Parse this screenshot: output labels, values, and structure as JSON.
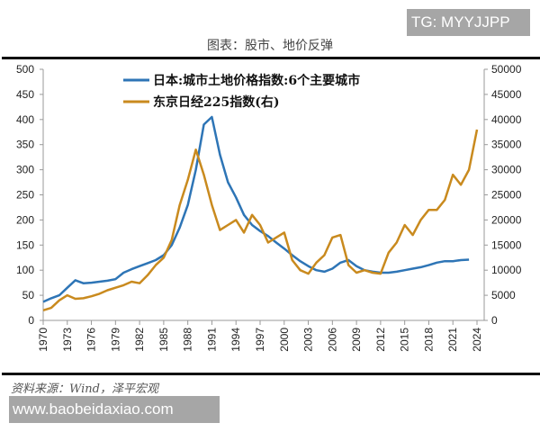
{
  "watermarks": {
    "top": "TG: MYYJJPP",
    "bottom": "www.baobeidaxiao.com"
  },
  "source": "资料来源：Wind，泽平宏观",
  "chart_data": {
    "type": "line",
    "title": "图表：股市、地价反弹",
    "x": [
      1970,
      1971,
      1972,
      1973,
      1974,
      1975,
      1976,
      1977,
      1978,
      1979,
      1980,
      1981,
      1982,
      1983,
      1984,
      1985,
      1986,
      1987,
      1988,
      1989,
      1990,
      1991,
      1992,
      1993,
      1994,
      1995,
      1996,
      1997,
      1998,
      1999,
      2000,
      2001,
      2002,
      2003,
      2004,
      2005,
      2006,
      2007,
      2008,
      2009,
      2010,
      2011,
      2012,
      2013,
      2014,
      2015,
      2016,
      2017,
      2018,
      2019,
      2020,
      2021,
      2022,
      2023,
      2024
    ],
    "xticks": [
      "1970",
      "1973",
      "1976",
      "1979",
      "1982",
      "1985",
      "1988",
      "1991",
      "1994",
      "1997",
      "2000",
      "2003",
      "2006",
      "2009",
      "2012",
      "2015",
      "2018",
      "2021",
      "2024"
    ],
    "y_left": {
      "lim": [
        0,
        500
      ],
      "ticks": [
        "0",
        "50",
        "100",
        "150",
        "200",
        "250",
        "300",
        "350",
        "400",
        "450",
        "500"
      ]
    },
    "y_right": {
      "lim": [
        0,
        50000
      ],
      "ticks": [
        "0",
        "5000",
        "10000",
        "15000",
        "20000",
        "25000",
        "30000",
        "35000",
        "40000",
        "45000",
        "50000"
      ]
    },
    "legend_position": "top-center",
    "grid": false,
    "series": [
      {
        "name": "日本:城市土地价格指数:6个主要城市",
        "axis": "left",
        "color": "#2e75b6",
        "values": [
          37,
          44,
          50,
          65,
          80,
          74,
          75,
          77,
          79,
          82,
          95,
          102,
          108,
          114,
          120,
          130,
          150,
          185,
          230,
          300,
          390,
          405,
          330,
          275,
          245,
          210,
          190,
          178,
          168,
          155,
          143,
          130,
          118,
          108,
          100,
          97,
          103,
          115,
          120,
          108,
          100,
          97,
          95,
          95,
          97,
          100,
          103,
          106,
          110,
          115,
          118,
          118,
          120,
          121,
          null
        ]
      },
      {
        "name": "东京日经225指数(右)",
        "axis": "right",
        "color": "#c98a1e",
        "values": [
          2000,
          2500,
          4000,
          5000,
          4300,
          4400,
          4800,
          5300,
          6000,
          6500,
          7000,
          7700,
          7400,
          9000,
          11000,
          12500,
          16000,
          23000,
          28000,
          34000,
          29000,
          23000,
          18000,
          19000,
          20000,
          17500,
          21000,
          19000,
          15500,
          16500,
          17500,
          12000,
          10000,
          9300,
          11500,
          13000,
          16500,
          17000,
          11000,
          9500,
          10000,
          9500,
          9300,
          13500,
          15500,
          19000,
          17000,
          20000,
          22000,
          22000,
          24000,
          29000,
          27000,
          30000,
          38000
        ]
      }
    ]
  }
}
